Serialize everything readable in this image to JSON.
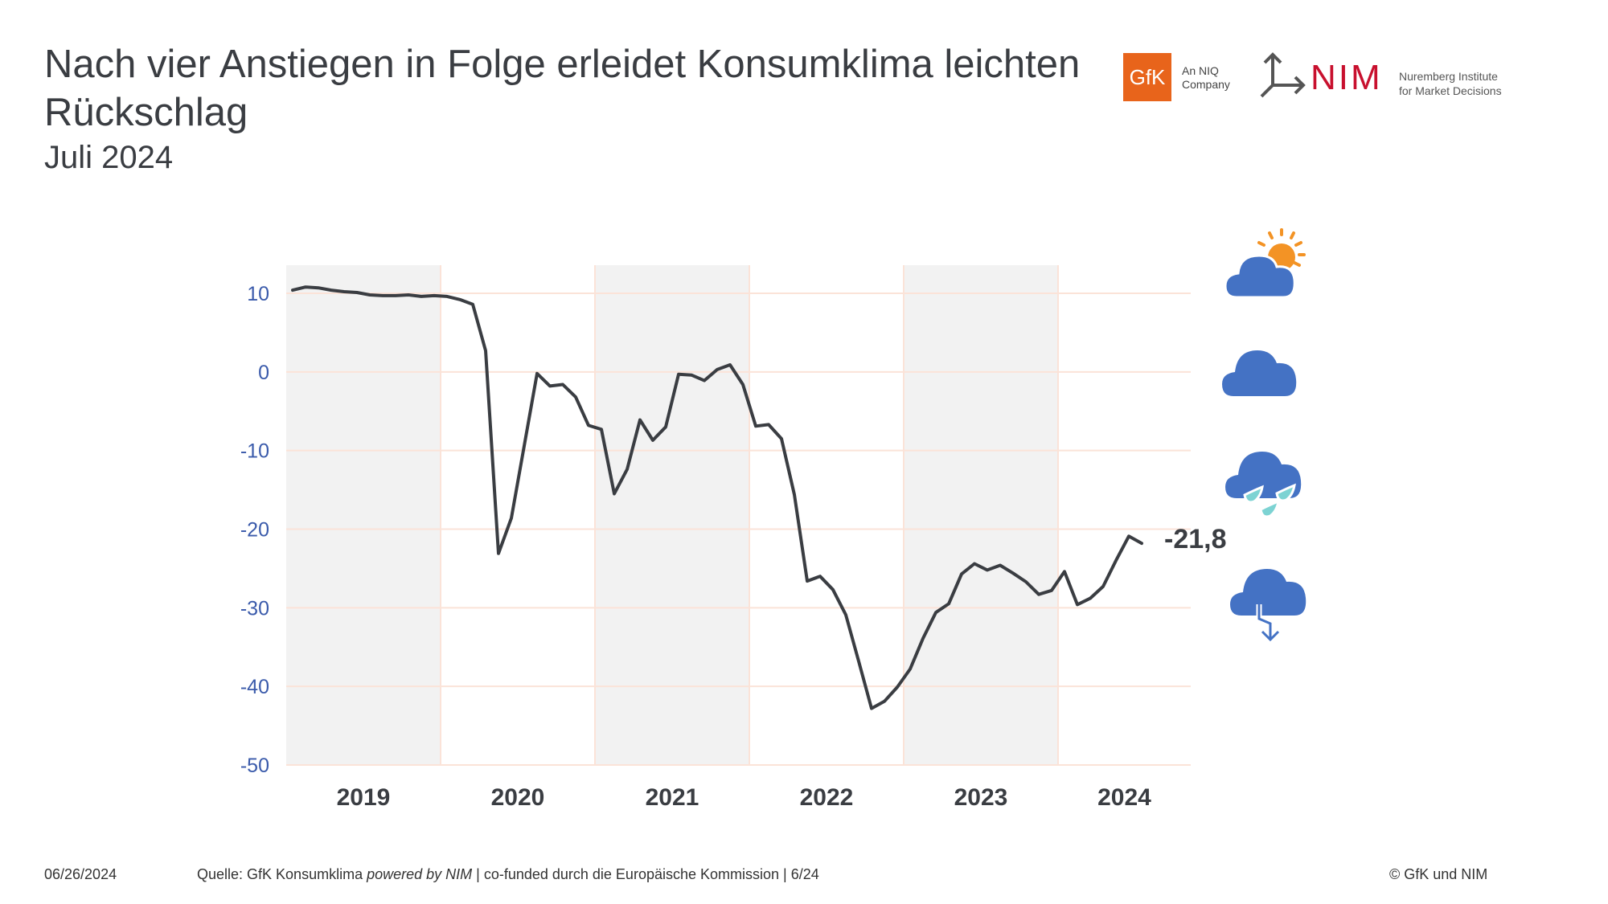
{
  "header": {
    "title": "Nach vier Anstiegen in Folge erleidet Konsumklima leichten Rückschlag",
    "subtitle": "Juli 2024"
  },
  "logos": {
    "gfk": "GfK",
    "gfk_tagline_1": "An NIQ",
    "gfk_tagline_2": "Company",
    "nim": "NIM",
    "nim_tagline_1": "Nuremberg Institute",
    "nim_tagline_2": "for Market Decisions"
  },
  "icons": [
    "sun-behind-cloud-icon",
    "cloud-icon",
    "rain-cloud-icon",
    "storm-cloud-icon"
  ],
  "footer": {
    "date": "06/26/2024",
    "source_prefix": "Quelle: GfK Konsumklima ",
    "source_italic": "powered by NIM",
    "source_suffix": " | co-funded durch die Europäische Kommission | 6/24",
    "copyright": "© GfK und NIM"
  },
  "colors": {
    "line": "#3a3d42",
    "axis_labels": "#3b5bab",
    "band": "#f2f2f2",
    "grid": "#fbe3d8",
    "cloud": "#4472c4",
    "sun": "#f39325",
    "rain": "#7dd3d3"
  },
  "chart_data": {
    "type": "line",
    "title": "",
    "xlabel": "",
    "ylabel": "",
    "ylim": [
      -50,
      10
    ],
    "yticks": [
      10,
      0,
      -10,
      -20,
      -30,
      -40,
      -50
    ],
    "years": [
      "2019",
      "2020",
      "2021",
      "2022",
      "2023",
      "2024"
    ],
    "shaded_years": [
      "2019",
      "2021",
      "2023"
    ],
    "start": "2019-01",
    "frequency": "monthly",
    "values": [
      10.4,
      10.8,
      10.7,
      10.4,
      10.2,
      10.1,
      9.8,
      9.7,
      9.7,
      9.8,
      9.6,
      9.7,
      9.6,
      9.2,
      8.6,
      2.7,
      -23.1,
      -18.6,
      -9.4,
      -0.2,
      -1.8,
      -1.6,
      -3.2,
      -6.8,
      -7.3,
      -15.5,
      -12.4,
      -6.1,
      -8.7,
      -7.0,
      -0.3,
      -0.4,
      -1.1,
      0.3,
      0.9,
      -1.6,
      -6.9,
      -6.7,
      -8.5,
      -15.6,
      -26.6,
      -26.0,
      -27.7,
      -30.9,
      -36.8,
      -42.8,
      -41.9,
      -40.1,
      -37.8,
      -33.9,
      -30.6,
      -29.5,
      -25.7,
      -24.4,
      -25.2,
      -24.6,
      -25.6,
      -26.7,
      -28.3,
      -27.8,
      -25.4,
      -29.6,
      -28.8,
      -27.3,
      -24.0,
      -20.9,
      -21.8
    ],
    "last_value_label": "-21,8",
    "grid": true
  }
}
